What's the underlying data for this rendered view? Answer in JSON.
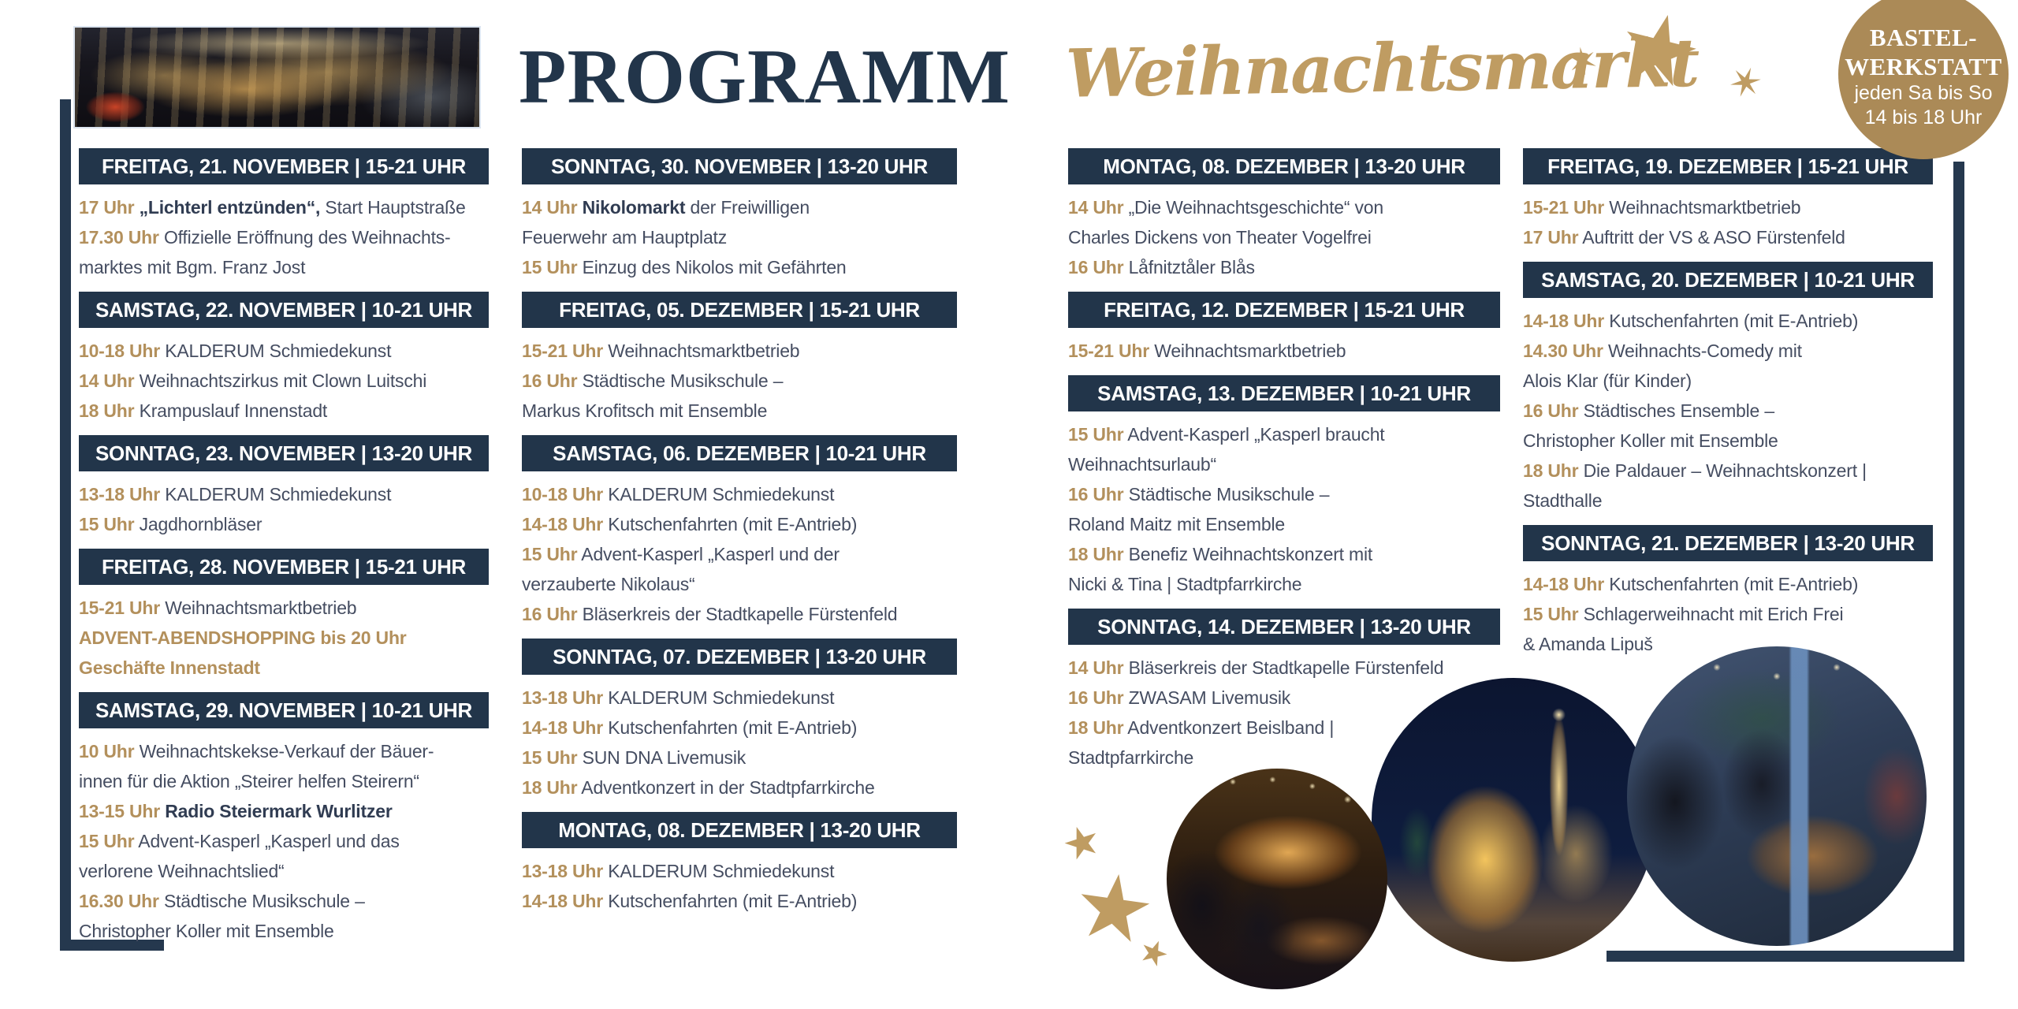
{
  "titles": {
    "program": "PROGRAMM",
    "script": "Weihnachtsmarkt"
  },
  "badge": {
    "line1": "BASTEL-",
    "line2": "WERKSTATT",
    "line3": "jeden Sa bis So",
    "line4": "14 bis 18 Uhr"
  },
  "colors": {
    "navy": "#22354a",
    "gold_time": "#b3905c",
    "gold_script": "#bf9c62",
    "badge_gold": "#ab8a57",
    "body_text": "#454d61",
    "background": "#ffffff"
  },
  "columns": [
    {
      "sections": [
        {
          "header": "FREITAG, 21. NOVEMBER | 15-21 UHR",
          "lines": [
            {
              "t": "17 Uhr",
              "b": " „Lichterl entzünden“,",
              "r": " Start Hauptstraße"
            },
            {
              "t": "17.30 Uhr",
              "r": " Offizielle Eröffnung des Weihnachts-"
            },
            {
              "r": "marktes mit Bgm. Franz Jost"
            }
          ]
        },
        {
          "header": "SAMSTAG, 22. NOVEMBER | 10-21 UHR",
          "lines": [
            {
              "t": "10-18 Uhr",
              "r": " KALDERUM Schmiedekunst"
            },
            {
              "t": "14 Uhr",
              "r": " Weihnachtszirkus mit Clown Luitschi"
            },
            {
              "t": "18 Uhr",
              "r": " Krampuslauf Innenstadt"
            }
          ]
        },
        {
          "header": "SONNTAG, 23. NOVEMBER | 13-20 UHR",
          "lines": [
            {
              "t": "13-18 Uhr",
              "r": " KALDERUM Schmiedekunst"
            },
            {
              "t": "15 Uhr",
              "r": " Jagdhornbläser"
            }
          ]
        },
        {
          "header": "FREITAG, 28. NOVEMBER | 15-21 UHR",
          "lines": [
            {
              "t": "15-21 Uhr",
              "r": " Weihnachtsmarktbetrieb"
            },
            {
              "t": "ADVENT-ABENDSHOPPING bis 20 Uhr"
            },
            {
              "t": "Geschäfte Innenstadt"
            }
          ]
        },
        {
          "header": "SAMSTAG, 29. NOVEMBER | 10-21 UHR",
          "lines": [
            {
              "t": "10 Uhr",
              "r": " Weihnachtskekse-Verkauf der Bäuer-"
            },
            {
              "r": "innen für die Aktion „Steirer helfen Steirern“"
            },
            {
              "t": "13-15 Uhr",
              "b": " Radio Steiermark Wurlitzer"
            },
            {
              "t": "15 Uhr",
              "r": " Advent-Kasperl „Kasperl und das"
            },
            {
              "r": "verlorene Weihnachtslied“"
            },
            {
              "t": "16.30 Uhr",
              "r": " Städtische Musikschule –"
            },
            {
              "r": "Christopher Koller mit Ensemble"
            }
          ]
        }
      ]
    },
    {
      "sections": [
        {
          "header": "SONNTAG, 30. NOVEMBER | 13-20 UHR",
          "lines": [
            {
              "t": "14 Uhr",
              "b": " Nikolomarkt",
              "r": " der Freiwilligen"
            },
            {
              "r": "Feuerwehr am Hauptplatz"
            },
            {
              "t": "15 Uhr",
              "r": " Einzug des Nikolos mit Gefährten"
            }
          ]
        },
        {
          "header": "FREITAG, 05. DEZEMBER | 15-21 UHR",
          "lines": [
            {
              "t": "15-21 Uhr",
              "r": " Weihnachtsmarktbetrieb"
            },
            {
              "t": "16 Uhr",
              "r": " Städtische Musikschule –"
            },
            {
              "r": "Markus Krofitsch mit Ensemble"
            }
          ]
        },
        {
          "header": "SAMSTAG, 06. DEZEMBER | 10-21 UHR",
          "lines": [
            {
              "t": "10-18 Uhr",
              "r": " KALDERUM Schmiedekunst"
            },
            {
              "t": "14-18 Uhr",
              "r": " Kutschenfahrten (mit E-Antrieb)"
            },
            {
              "t": "15 Uhr",
              "r": " Advent-Kasperl „Kasperl und der"
            },
            {
              "r": "verzauberte Nikolaus“"
            },
            {
              "t": "16 Uhr",
              "r": " Bläserkreis der Stadtkapelle Fürstenfeld"
            }
          ]
        },
        {
          "header": "SONNTAG, 07. DEZEMBER | 13-20 UHR",
          "lines": [
            {
              "t": "13-18 Uhr",
              "r": " KALDERUM Schmiedekunst"
            },
            {
              "t": "14-18 Uhr",
              "r": " Kutschenfahrten (mit E-Antrieb)"
            },
            {
              "t": "15 Uhr",
              "r": " SUN DNA Livemusik"
            },
            {
              "t": "18 Uhr",
              "r": " Adventkonzert in der Stadtpfarrkirche"
            }
          ]
        },
        {
          "header": "MONTAG, 08. DEZEMBER | 13-20 UHR",
          "lines": [
            {
              "t": "13-18 Uhr",
              "r": " KALDERUM Schmiedekunst"
            },
            {
              "t": "14-18 Uhr",
              "r": " Kutschenfahrten (mit E-Antrieb)"
            }
          ]
        }
      ]
    },
    {
      "sections": [
        {
          "header": "MONTAG, 08. DEZEMBER | 13-20 UHR",
          "lines": [
            {
              "t": "14 Uhr",
              "r": " „Die Weihnachtsgeschichte“ von"
            },
            {
              "r": "Charles Dickens von Theater Vogelfrei"
            },
            {
              "t": "16 Uhr",
              "r": " Låfnitztåler Blås"
            }
          ]
        },
        {
          "header": "FREITAG, 12. DEZEMBER | 15-21 UHR",
          "lines": [
            {
              "t": "15-21 Uhr",
              "r": " Weihnachtsmarktbetrieb"
            }
          ]
        },
        {
          "header": "SAMSTAG, 13. DEZEMBER | 10-21 UHR",
          "lines": [
            {
              "t": "15 Uhr",
              "r": " Advent-Kasperl „Kasperl braucht"
            },
            {
              "r": "Weihnachtsurlaub“"
            },
            {
              "t": "16 Uhr",
              "r": " Städtische Musikschule –"
            },
            {
              "r": "Roland Maitz mit Ensemble"
            },
            {
              "t": "18 Uhr",
              "r": " Benefiz Weihnachtskonzert mit"
            },
            {
              "r": "Nicki & Tina | Stadtpfarrkirche"
            }
          ]
        },
        {
          "header": "SONNTAG, 14. DEZEMBER | 13-20 UHR",
          "lines": [
            {
              "t": "14 Uhr",
              "r": " Bläserkreis der Stadtkapelle Fürstenfeld"
            },
            {
              "t": "16 Uhr",
              "r": " ZWASAM Livemusik"
            },
            {
              "t": "18 Uhr",
              "r": " Adventkonzert Beislband |"
            },
            {
              "r": "Stadtpfarrkirche"
            }
          ]
        }
      ]
    },
    {
      "sections": [
        {
          "header": "FREITAG, 19. DEZEMBER | 15-21 UHR",
          "lines": [
            {
              "t": "15-21 Uhr",
              "r": " Weihnachtsmarktbetrieb"
            },
            {
              "t": "17 Uhr",
              "r": " Auftritt der VS & ASO Fürstenfeld"
            }
          ]
        },
        {
          "header": "SAMSTAG, 20. DEZEMBER | 10-21 UHR",
          "lines": [
            {
              "t": "14-18 Uhr",
              "r": " Kutschenfahrten (mit E-Antrieb)"
            },
            {
              "t": "14.30 Uhr",
              "r": " Weihnachts-Comedy mit"
            },
            {
              "r": "Alois Klar (für Kinder)"
            },
            {
              "t": "16 Uhr",
              "r": " Städtisches Ensemble –"
            },
            {
              "r": "Christopher Koller mit Ensemble"
            },
            {
              "t": "18 Uhr",
              "r": " Die Paldauer – Weihnachtskonzert |"
            },
            {
              "r": "Stadthalle"
            }
          ]
        },
        {
          "header": "SONNTAG, 21. DEZEMBER | 13-20 UHR",
          "lines": [
            {
              "t": "14-18 Uhr",
              "r": " Kutschenfahrten (mit E-Antrieb)"
            },
            {
              "t": "15 Uhr",
              "r": " Schlagerweihnacht mit Erich Frei"
            },
            {
              "r": "& Amanda Lipuš"
            }
          ]
        }
      ]
    }
  ],
  "icons": {
    "stars_title": [
      "four-point-star",
      "five-point-star-large",
      "four-point-star"
    ],
    "stars_bottom": [
      "five-point-star-small",
      "five-point-star-large",
      "five-point-star-tiny"
    ]
  }
}
